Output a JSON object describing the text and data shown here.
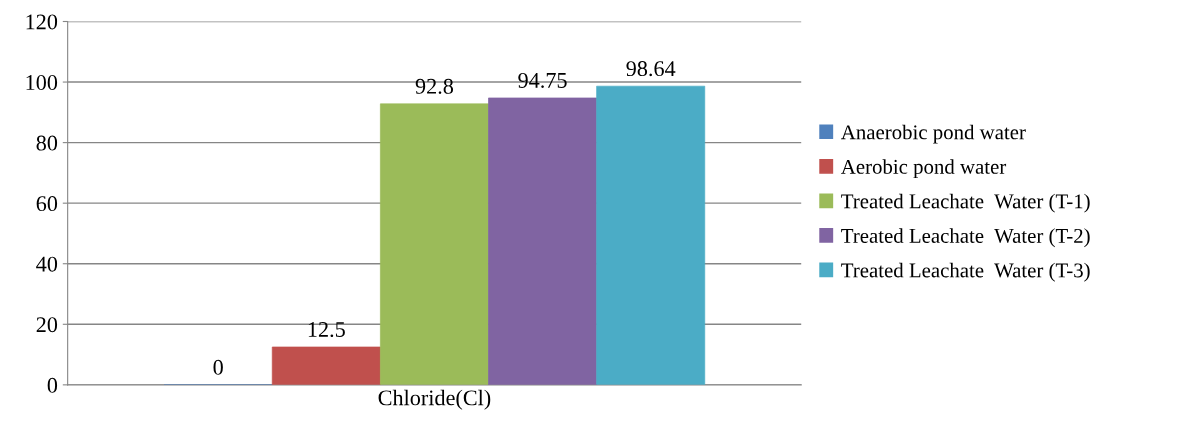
{
  "chart_data": {
    "type": "bar",
    "categories": [
      "Chloride(Cl)"
    ],
    "series": [
      {
        "name": "Anaerobic pond water",
        "color": "#4f81bd",
        "values": [
          0
        ]
      },
      {
        "name": "Aerobic pond water",
        "color": "#c0504d",
        "values": [
          12.5
        ]
      },
      {
        "name": "Treated Leachate  Water (T-1)",
        "color": "#9bbb59",
        "values": [
          92.8
        ]
      },
      {
        "name": "Treated Leachate  Water (T-2)",
        "color": "#8064a2",
        "values": [
          94.75
        ]
      },
      {
        "name": "Treated Leachate  Water (T-3)",
        "color": "#4bacc6",
        "values": [
          98.64
        ]
      }
    ],
    "ylim": [
      0,
      120
    ],
    "yticks": [
      0,
      20,
      40,
      60,
      80,
      100,
      120
    ],
    "grid": "y",
    "legend": "right",
    "data_labels": true
  }
}
